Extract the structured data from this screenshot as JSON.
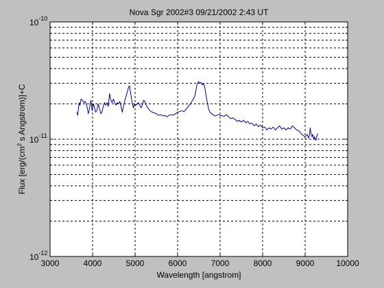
{
  "chart_data": {
    "type": "line",
    "title": "Nova Sgr 2002#3  09/21/2002 2:43 UT",
    "xlabel": "Wavelength [angstrom]",
    "ylabel": "Flux [erg/(cm² s Angstrom)]+C",
    "xlim": [
      3000,
      10000
    ],
    "ylim": [
      1e-12,
      1e-10
    ],
    "yscale": "log",
    "grid": true,
    "x_ticks": [
      3000,
      4000,
      5000,
      6000,
      7000,
      8000,
      9000,
      10000
    ],
    "x_tick_labels": [
      "3000",
      "4000",
      "5000",
      "6000",
      "7000",
      "8000",
      "9000",
      "10000"
    ],
    "y_ticks": [
      1e-12,
      1e-11,
      1e-10
    ],
    "y_tick_labels": [
      {
        "base": "10",
        "exp": "-12"
      },
      {
        "base": "10",
        "exp": "-11"
      },
      {
        "base": "10",
        "exp": "-10"
      }
    ],
    "series": [
      {
        "color": "#00008b",
        "x": [
          3630,
          3650,
          3680,
          3700,
          3730,
          3760,
          3800,
          3830,
          3860,
          3880,
          3900,
          3930,
          3960,
          3990,
          4020,
          4050,
          4070,
          4100,
          4130,
          4160,
          4190,
          4220,
          4250,
          4280,
          4310,
          4340,
          4370,
          4400,
          4430,
          4460,
          4490,
          4520,
          4550,
          4580,
          4610,
          4640,
          4670,
          4700,
          4730,
          4760,
          4790,
          4820,
          4850,
          4870,
          4900,
          4930,
          4960,
          4990,
          5020,
          5050,
          5080,
          5110,
          5140,
          5170,
          5200,
          5230,
          5260,
          5300,
          5350,
          5400,
          5450,
          5500,
          5550,
          5600,
          5650,
          5700,
          5750,
          5800,
          5850,
          5900,
          5950,
          6000,
          6050,
          6100,
          6150,
          6200,
          6250,
          6300,
          6350,
          6400,
          6430,
          6460,
          6490,
          6520,
          6550,
          6580,
          6610,
          6640,
          6670,
          6700,
          6730,
          6760,
          6800,
          6850,
          6900,
          6950,
          7000,
          7050,
          7100,
          7150,
          7200,
          7250,
          7300,
          7350,
          7400,
          7450,
          7500,
          7550,
          7600,
          7650,
          7700,
          7750,
          7800,
          7850,
          7900,
          7950,
          8000,
          8050,
          8100,
          8150,
          8200,
          8250,
          8300,
          8350,
          8400,
          8450,
          8500,
          8550,
          8600,
          8650,
          8700,
          8750,
          8800,
          8850,
          8900,
          8950,
          9000,
          9050,
          9080,
          9100,
          9120,
          9140,
          9160,
          9180,
          9200,
          9220,
          9250,
          9280,
          9300
        ],
        "y": [
          1.7e-11,
          1.6e-11,
          2.05e-11,
          1.95e-11,
          2.2e-11,
          2.15e-11,
          2.05e-11,
          2.1e-11,
          1.95e-11,
          1.8e-11,
          1.65e-11,
          1.85e-11,
          2.15e-11,
          1.75e-11,
          2e-11,
          1.85e-11,
          1.7e-11,
          1.75e-11,
          2e-11,
          1.85e-11,
          1.65e-11,
          1.7e-11,
          1.9e-11,
          2.05e-11,
          1.95e-11,
          2.05e-11,
          1.9e-11,
          2.45e-11,
          2.15e-11,
          2.05e-11,
          2.2e-11,
          2.05e-11,
          1.95e-11,
          2.05e-11,
          2e-11,
          2.1e-11,
          1.9e-11,
          1.7e-11,
          1.95e-11,
          2.15e-11,
          2.35e-11,
          2.55e-11,
          2.8e-11,
          2.85e-11,
          2.4e-11,
          2.05e-11,
          1.85e-11,
          2e-11,
          1.95e-11,
          2e-11,
          2.05e-11,
          1.95e-11,
          1.85e-11,
          1.95e-11,
          2.15e-11,
          2.1e-11,
          1.95e-11,
          1.85e-11,
          1.75e-11,
          1.7e-11,
          1.68e-11,
          1.65e-11,
          1.6e-11,
          1.62e-11,
          1.58e-11,
          1.6e-11,
          1.55e-11,
          1.6e-11,
          1.62e-11,
          1.6e-11,
          1.65e-11,
          1.7e-11,
          1.72e-11,
          1.75e-11,
          1.72e-11,
          1.8e-11,
          1.9e-11,
          2e-11,
          2.15e-11,
          2.3e-11,
          2.6e-11,
          2.95e-11,
          3.1e-11,
          3e-11,
          3.05e-11,
          2.9e-11,
          3e-11,
          2.75e-11,
          2.35e-11,
          2.05e-11,
          1.8e-11,
          1.7e-11,
          1.65e-11,
          1.6e-11,
          1.58e-11,
          1.62e-11,
          1.6e-11,
          1.58e-11,
          1.57e-11,
          1.62e-11,
          1.55e-11,
          1.5e-11,
          1.52e-11,
          1.48e-11,
          1.42e-11,
          1.45e-11,
          1.4e-11,
          1.45e-11,
          1.38e-11,
          1.42e-11,
          1.35e-11,
          1.37e-11,
          1.3e-11,
          1.35e-11,
          1.28e-11,
          1.32e-11,
          1.25e-11,
          1.27e-11,
          1.2e-11,
          1.25e-11,
          1.22e-11,
          1.27e-11,
          1.2e-11,
          1.25e-11,
          1.3e-11,
          1.22e-11,
          1.25e-11,
          1.2e-11,
          1.25e-11,
          1.22e-11,
          1.3e-11,
          1.25e-11,
          1.2e-11,
          1.18e-11,
          1.12e-11,
          1.08e-11,
          1.05e-11,
          1.1e-11,
          1.02e-11,
          1.08e-11,
          1.25e-11,
          1.1e-11,
          1.05e-11,
          1.1e-11,
          1e-11,
          1.05e-11,
          9.8e-12,
          1.08e-11,
          1.12e-11
        ]
      }
    ]
  }
}
